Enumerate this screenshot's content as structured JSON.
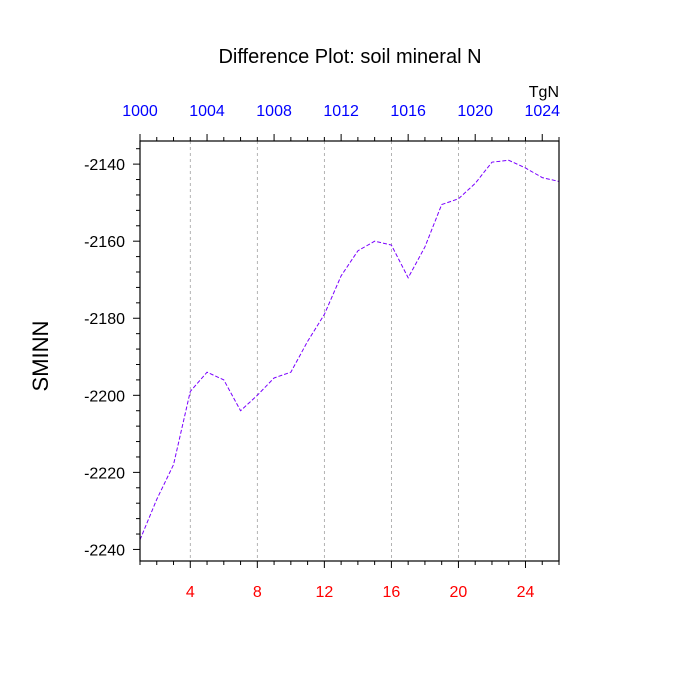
{
  "chart_data": {
    "type": "line",
    "title": "Difference Plot: soil mineral N",
    "ylabel": "SMINN",
    "top_axis_units": "TgN",
    "x": [
      1,
      2,
      3,
      4,
      5,
      6,
      7,
      8,
      9,
      10,
      11,
      12,
      13,
      14,
      15,
      16,
      17,
      18,
      19,
      20,
      21,
      22,
      23,
      24,
      25,
      26
    ],
    "series": [
      {
        "values": [
          -2237.5,
          -2227,
          -2218,
          -2199,
          -2194,
          -2196,
          -2204,
          -2200,
          -2195.5,
          -2194,
          -2186,
          -2179,
          -2169,
          -2162.5,
          -2160,
          -2161,
          -2169.5,
          -2161.5,
          -2150.5,
          -2149,
          -2145,
          -2139.5,
          -2139,
          -2141,
          -2143.5,
          -2144.5
        ]
      }
    ],
    "xlim": [
      1,
      26
    ],
    "ylim": [
      -2243,
      -2134
    ],
    "bottom_ticks": [
      "4",
      "8",
      "12",
      "16",
      "20",
      "24"
    ],
    "bottom_tick_values": [
      4,
      8,
      12,
      16,
      20,
      24
    ],
    "top_ticks": [
      "1000",
      "1004",
      "1008",
      "1012",
      "1016",
      "1020",
      "1024"
    ],
    "top_tick_values": [
      1000,
      1004,
      1008,
      1012,
      1016,
      1020,
      1024
    ],
    "top_axis_range": [
      1000,
      1025
    ],
    "y_ticks": [
      "-2140",
      "-2160",
      "-2180",
      "-2200",
      "-2220",
      "-2240"
    ],
    "y_tick_values": [
      -2140,
      -2160,
      -2180,
      -2200,
      -2220,
      -2240
    ],
    "colors": {
      "line": "#7a00ff",
      "bottom_tick_labels": "#ff0000",
      "top_tick_labels": "#0000ff",
      "grid": "#a0a0a0"
    },
    "grid": "vertical dashed at bottom ticks"
  }
}
